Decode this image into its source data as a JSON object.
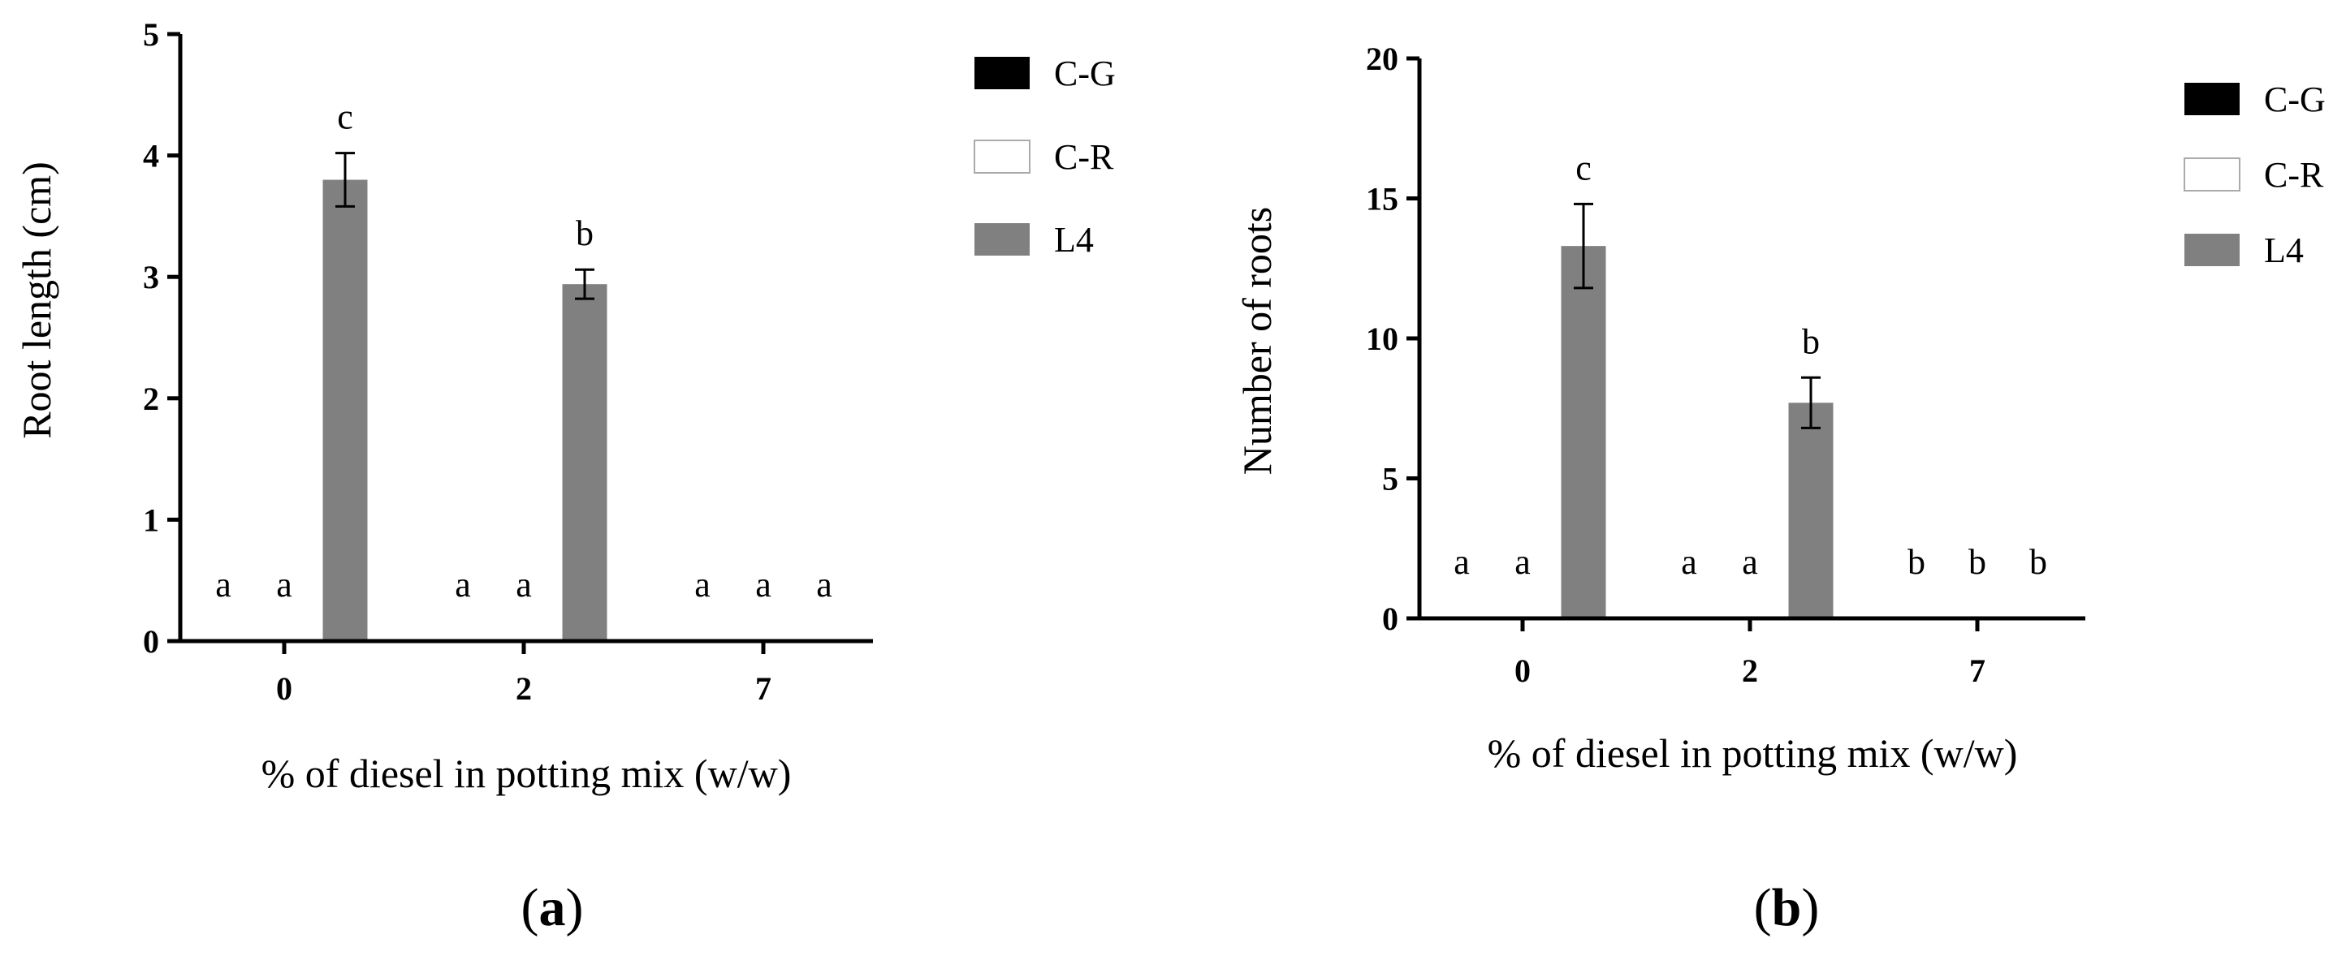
{
  "colors": {
    "C-G": "#000000",
    "C-R": "#ffffff",
    "L4": "#808080",
    "axis": "#000000"
  },
  "chart_data": [
    {
      "type": "bar",
      "panel_label": "a",
      "title": "",
      "xlabel": "% of diesel in potting mix (w/w)",
      "ylabel": "Root length (cm)",
      "categories": [
        "0",
        "2",
        "7"
      ],
      "ylim": [
        0,
        5
      ],
      "yticks": [
        "0",
        "1",
        "2",
        "3",
        "4",
        "5"
      ],
      "legend_position": "right",
      "series": [
        {
          "name": "C-G",
          "values": [
            0,
            0,
            0
          ],
          "errors": [
            0,
            0,
            0
          ],
          "letters": [
            "a",
            "a",
            "a"
          ]
        },
        {
          "name": "C-R",
          "values": [
            0,
            0,
            0
          ],
          "errors": [
            0,
            0,
            0
          ],
          "letters": [
            "a",
            "a",
            "a"
          ]
        },
        {
          "name": "L4",
          "values": [
            3.8,
            2.94,
            0
          ],
          "errors": [
            0.22,
            0.12,
            0
          ],
          "letters": [
            "c",
            "b",
            "a"
          ]
        }
      ]
    },
    {
      "type": "bar",
      "panel_label": "b",
      "title": "",
      "xlabel": "% of diesel in potting mix (w/w)",
      "ylabel": "Number of roots",
      "categories": [
        "0",
        "2",
        "7"
      ],
      "ylim": [
        0,
        20
      ],
      "yticks": [
        "0",
        "5",
        "10",
        "15",
        "20"
      ],
      "legend_position": "right",
      "series": [
        {
          "name": "C-G",
          "values": [
            0,
            0,
            0
          ],
          "errors": [
            0,
            0,
            0
          ],
          "letters": [
            "a",
            "a",
            "b"
          ]
        },
        {
          "name": "C-R",
          "values": [
            0,
            0,
            0
          ],
          "errors": [
            0,
            0,
            0
          ],
          "letters": [
            "a",
            "a",
            "b"
          ]
        },
        {
          "name": "L4",
          "values": [
            13.3,
            7.7,
            0
          ],
          "errors": [
            1.5,
            0.9,
            0
          ],
          "letters": [
            "c",
            "b",
            "b"
          ]
        }
      ]
    }
  ]
}
